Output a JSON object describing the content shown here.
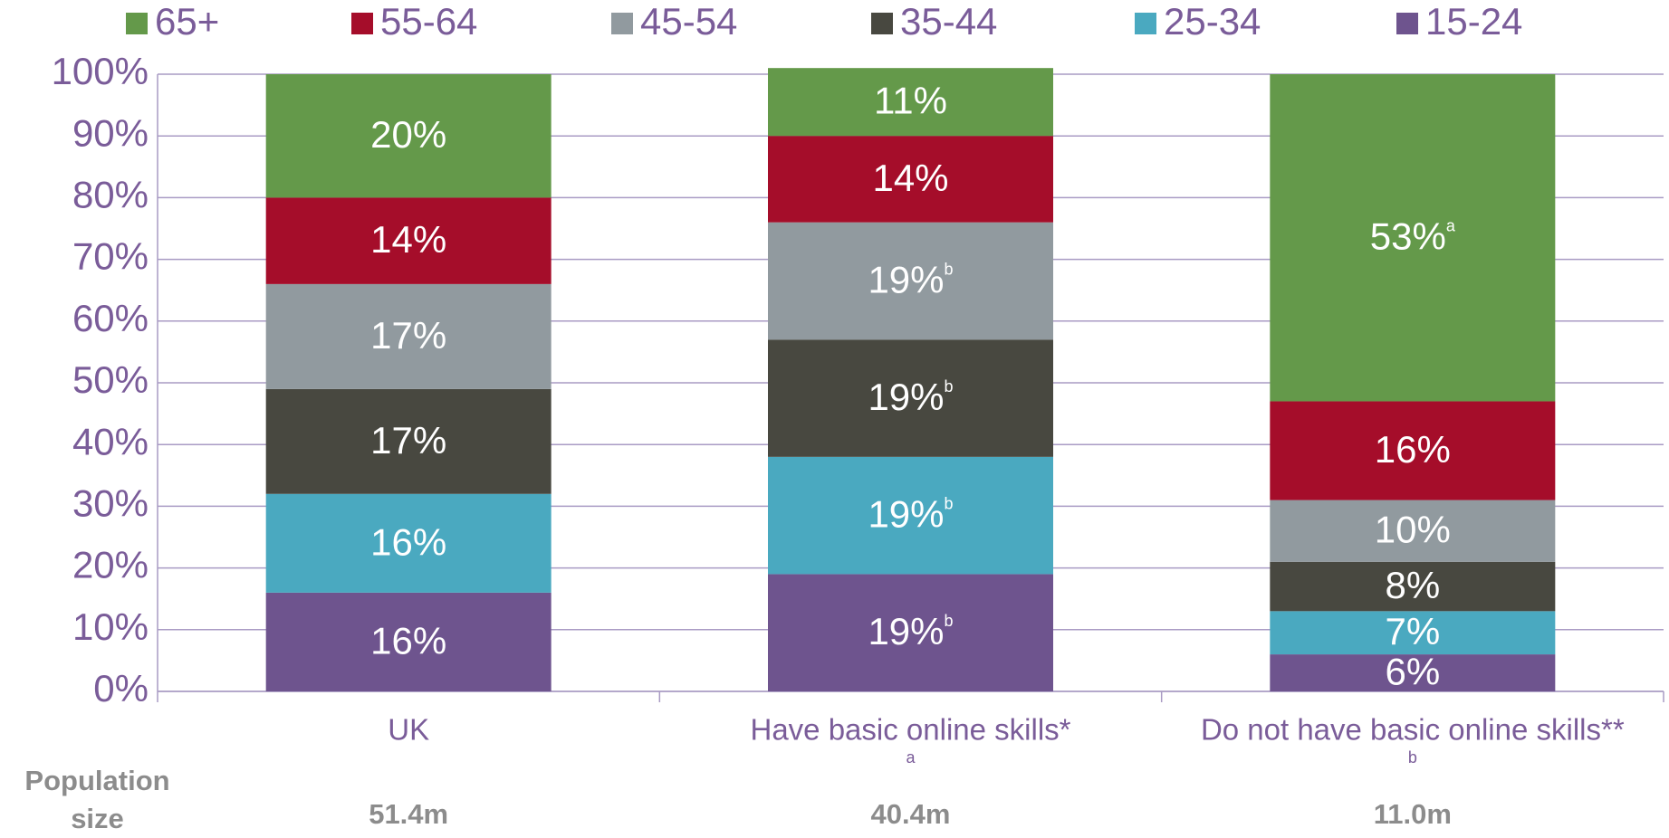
{
  "chart_data": {
    "type": "stacked_bar",
    "categories": [
      "UK",
      "Have basic online skills*",
      "Do not have basic online skills**"
    ],
    "category_notes": [
      null,
      "a",
      "b"
    ],
    "series": [
      {
        "name": "15-24",
        "color": "#6e548e",
        "values": [
          16,
          19,
          6
        ],
        "value_labels": [
          "16%",
          "19%",
          "6%"
        ],
        "notes": [
          null,
          "b",
          null
        ]
      },
      {
        "name": "25-34",
        "color": "#4aa9c0",
        "values": [
          16,
          19,
          7
        ],
        "value_labels": [
          "16%",
          "19%",
          "7%"
        ],
        "notes": [
          null,
          "b",
          null
        ]
      },
      {
        "name": "35-44",
        "color": "#484840",
        "values": [
          17,
          19,
          8
        ],
        "value_labels": [
          "17%",
          "19%",
          "8%"
        ],
        "notes": [
          null,
          "b",
          null
        ]
      },
      {
        "name": "45-54",
        "color": "#919a9f",
        "values": [
          17,
          19,
          10
        ],
        "value_labels": [
          "17%",
          "19%",
          "10%"
        ],
        "notes": [
          null,
          "b",
          null
        ]
      },
      {
        "name": "55-64",
        "color": "#a50d2a",
        "values": [
          14,
          14,
          16
        ],
        "value_labels": [
          "14%",
          "14%",
          "16%"
        ],
        "notes": [
          null,
          null,
          null
        ]
      },
      {
        "name": "65+",
        "color": "#64994a",
        "values": [
          20,
          11,
          53
        ],
        "value_labels": [
          "20%",
          "11%",
          "53%"
        ],
        "notes": [
          null,
          null,
          "a"
        ]
      }
    ],
    "ylim": [
      0,
      100
    ],
    "yticks": [
      {
        "value": 0,
        "label": "0%"
      },
      {
        "value": 10,
        "label": "10%"
      },
      {
        "value": 20,
        "label": "20%"
      },
      {
        "value": 30,
        "label": "30%"
      },
      {
        "value": 40,
        "label": "40%"
      },
      {
        "value": 50,
        "label": "50%"
      },
      {
        "value": 60,
        "label": "60%"
      },
      {
        "value": 70,
        "label": "70%"
      },
      {
        "value": 80,
        "label": "80%"
      },
      {
        "value": 90,
        "label": "90%"
      },
      {
        "value": 100,
        "label": "100%"
      }
    ],
    "grid": true,
    "legend": "top",
    "population_label": "Population size",
    "population_values": [
      "51.4m",
      "40.4m",
      "11.0m"
    ]
  }
}
